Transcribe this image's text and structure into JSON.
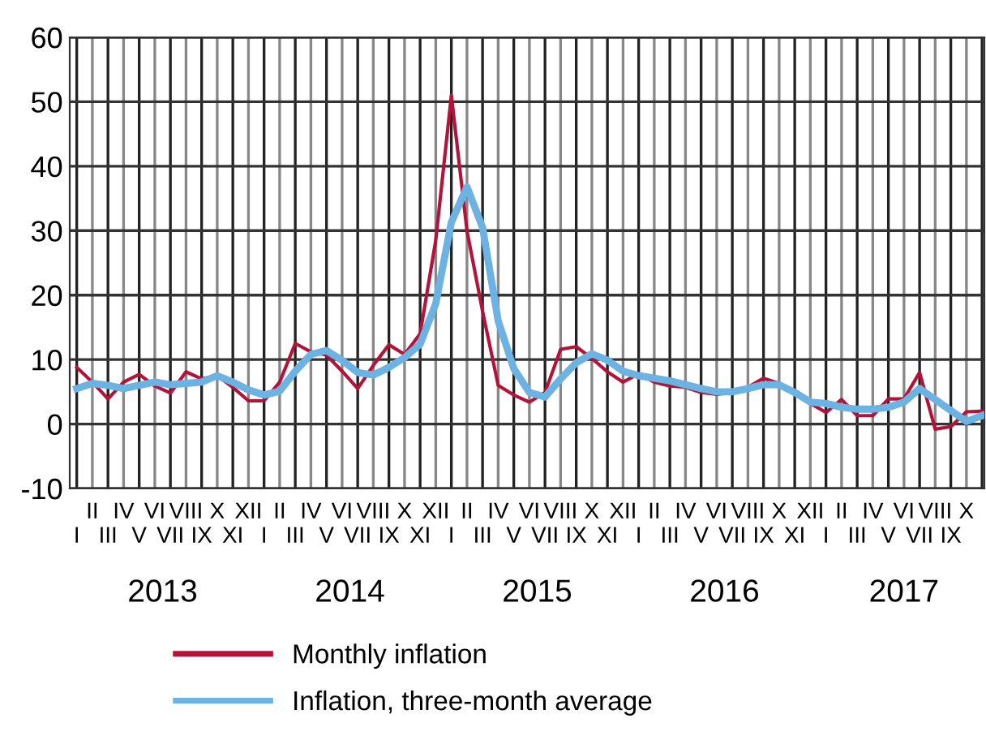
{
  "chart_data": {
    "type": "line",
    "categories": [
      "I",
      "II",
      "III",
      "IV",
      "V",
      "VI",
      "VII",
      "VIII",
      "IX",
      "X",
      "XI",
      "XII",
      "I",
      "II",
      "III",
      "IV",
      "V",
      "VI",
      "VII",
      "VIII",
      "IX",
      "X",
      "XI",
      "XII",
      "I",
      "II",
      "III",
      "IV",
      "V",
      "VI",
      "VII",
      "VIII",
      "IX",
      "X",
      "XI",
      "XII",
      "I",
      "II",
      "III",
      "IV",
      "V",
      "VI",
      "VII",
      "VIII",
      "IX",
      "X",
      "XI",
      "XII",
      "I",
      "II",
      "III",
      "IV",
      "V",
      "VI",
      "VII",
      "VIII",
      "IX",
      "X",
      null
    ],
    "series": [
      {
        "name": "Monthly inflation",
        "color": "#b5123a",
        "values": [
          8.8,
          6.5,
          3.9,
          6.5,
          7.7,
          5.9,
          4.8,
          8.1,
          7.0,
          7.5,
          5.7,
          3.6,
          3.6,
          6.5,
          12.5,
          11.2,
          10.7,
          8.2,
          5.5,
          9.1,
          12.3,
          10.8,
          14.0,
          28.5,
          51,
          30,
          17.5,
          6.0,
          4.5,
          3.4,
          4.9,
          11.6,
          12.0,
          10.2,
          8.1,
          6.5,
          7.8,
          6.5,
          5.9,
          5.7,
          4.9,
          4.6,
          4.9,
          5.7,
          7.1,
          6.3,
          4.9,
          3.2,
          1.8,
          3.8,
          1.3,
          1.3,
          3.9,
          3.9,
          8.0,
          -0.8,
          -0.4,
          1.9,
          2.0
        ]
      },
      {
        "name": "Inflation, three-month average",
        "color": "#6cb2e3",
        "values": [
          5.5,
          6.3,
          6.0,
          5.5,
          6.0,
          6.5,
          6.1,
          6.3,
          6.5,
          7.5,
          6.5,
          5.3,
          4.5,
          5.1,
          8.2,
          10.8,
          11.4,
          9.9,
          8.0,
          7.6,
          8.8,
          10.3,
          12.4,
          18.7,
          31.3,
          36.8,
          30.5,
          16,
          8.6,
          4.9,
          4.2,
          7.0,
          9.5,
          10.9,
          9.9,
          8.2,
          7.5,
          7.1,
          6.7,
          6.1,
          5.5,
          5.0,
          5.0,
          5.5,
          6.1,
          6.1,
          4.9,
          3.4,
          3.2,
          2.6,
          2.3,
          2.3,
          2.6,
          3.4,
          5.5,
          3.8,
          2.1,
          0.4,
          1.3
        ]
      }
    ],
    "ylim": [
      -10,
      60
    ],
    "yticks": [
      -10,
      0,
      10,
      20,
      30,
      40,
      50,
      60
    ],
    "annotations": [
      "2013",
      "2014",
      "2015",
      "2016",
      "2017"
    ],
    "grid": true,
    "legend": "bottom",
    "marker": "none",
    "line_style": "solid"
  }
}
